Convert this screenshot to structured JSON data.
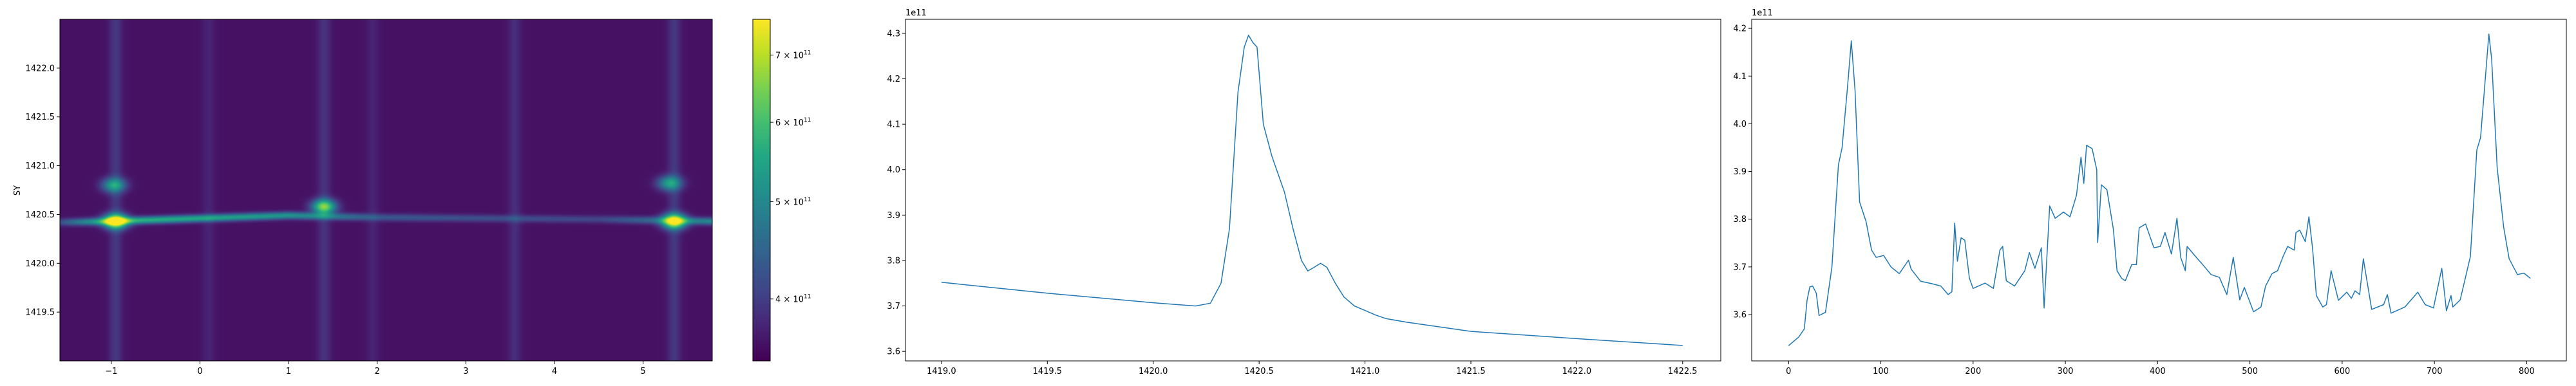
{
  "chart_data": [
    {
      "type": "heatmap",
      "xlabel": "",
      "ylabel": "SY",
      "xlim": [
        -1.58,
        5.78
      ],
      "ylim": [
        1419.0,
        1422.5
      ],
      "xticks": [
        -1,
        0,
        1,
        2,
        3,
        4,
        5
      ],
      "xtick_labels": [
        "−1",
        "0",
        "1",
        "2",
        "3",
        "4",
        "5"
      ],
      "yticks": [
        1419.5,
        1420.0,
        1420.5,
        1421.0,
        1421.5,
        1422.0
      ],
      "ytick_labels": [
        "1419.5",
        "1420.0",
        "1420.5",
        "1421.0",
        "1421.5",
        "1422.0"
      ],
      "colormap": "viridis",
      "color_scale": "log",
      "background_level": 360000000000.0,
      "bright_columns": [
        {
          "x": -0.95,
          "level": 395000000000.0
        },
        {
          "x": 0.1,
          "level": 375000000000.0
        },
        {
          "x": 1.4,
          "level": 390000000000.0
        },
        {
          "x": 1.95,
          "level": 375000000000.0
        },
        {
          "x": 3.55,
          "level": 385000000000.0
        },
        {
          "x": 5.35,
          "level": 395000000000.0
        }
      ],
      "ridge": [
        {
          "x": -1.58,
          "y": 1420.42,
          "level": 420000000000.0
        },
        {
          "x": -1.0,
          "y": 1420.43,
          "level": 580000000000.0
        },
        {
          "x": 1.0,
          "y": 1420.49,
          "level": 520000000000.0
        },
        {
          "x": 2.0,
          "y": 1420.47,
          "level": 430000000000.0
        },
        {
          "x": 4.5,
          "y": 1420.45,
          "level": 410000000000.0
        },
        {
          "x": 5.78,
          "y": 1420.43,
          "level": 500000000000.0
        }
      ],
      "hotspots": [
        {
          "x": -0.95,
          "y": 1420.43,
          "value": 750000000000.0
        },
        {
          "x": -0.97,
          "y": 1420.8,
          "value": 540000000000.0
        },
        {
          "x": 1.4,
          "y": 1420.58,
          "value": 640000000000.0
        },
        {
          "x": 5.35,
          "y": 1420.43,
          "value": 740000000000.0
        },
        {
          "x": 5.3,
          "y": 1420.82,
          "value": 540000000000.0
        }
      ],
      "colorbar": {
        "range": [
          347000000000.0,
          760000000000.0
        ],
        "ticks": [
          {
            "value": 700000000000.0,
            "base": "7 × 10",
            "exp": "11"
          },
          {
            "value": 600000000000.0,
            "base": "6 × 10",
            "exp": "11"
          },
          {
            "value": 500000000000.0,
            "base": "5 × 10",
            "exp": "11"
          },
          {
            "value": 400000000000.0,
            "base": "4 × 10",
            "exp": "11"
          }
        ]
      }
    },
    {
      "type": "line",
      "xlim": [
        1418.83,
        1422.68
      ],
      "ylim": [
        3.579,
        4.331
      ],
      "offset_label": "1e11",
      "xticks": [
        1419.0,
        1419.5,
        1420.0,
        1420.5,
        1421.0,
        1421.5,
        1422.0,
        1422.5
      ],
      "xtick_labels": [
        "1419.0",
        "1419.5",
        "1420.0",
        "1420.5",
        "1421.0",
        "1421.5",
        "1422.0",
        "1422.5"
      ],
      "yticks": [
        3.6,
        3.7,
        3.8,
        3.9,
        4.0,
        4.1,
        4.2,
        4.3
      ],
      "ytick_labels": [
        "3.6",
        "3.7",
        "3.8",
        "3.9",
        "4.0",
        "4.1",
        "4.2",
        "4.3"
      ],
      "color": "#1f77b4",
      "x": [
        1419.0,
        1419.5,
        1420.0,
        1420.2,
        1420.27,
        1420.32,
        1420.36,
        1420.4,
        1420.43,
        1420.45,
        1420.47,
        1420.49,
        1420.52,
        1420.56,
        1420.62,
        1420.66,
        1420.7,
        1420.73,
        1420.76,
        1420.79,
        1420.82,
        1420.86,
        1420.9,
        1420.95,
        1421.0,
        1421.05,
        1421.1,
        1421.2,
        1421.5,
        1422.0,
        1422.5
      ],
      "y": [
        3.752,
        3.728,
        3.707,
        3.7,
        3.706,
        3.75,
        3.87,
        4.17,
        4.27,
        4.296,
        4.28,
        4.27,
        4.1,
        4.03,
        3.95,
        3.87,
        3.8,
        3.777,
        3.785,
        3.794,
        3.785,
        3.75,
        3.72,
        3.7,
        3.69,
        3.68,
        3.672,
        3.664,
        3.644,
        3.628,
        3.613
      ]
    },
    {
      "type": "line",
      "xlim": [
        -40,
        843
      ],
      "ylim": [
        3.503,
        4.219
      ],
      "offset_label": "1e11",
      "xticks": [
        0,
        100,
        200,
        300,
        400,
        500,
        600,
        700,
        800
      ],
      "xtick_labels": [
        "0",
        "100",
        "200",
        "300",
        "400",
        "500",
        "600",
        "700",
        "800"
      ],
      "yticks": [
        3.6,
        3.7,
        3.8,
        3.9,
        4.0,
        4.1,
        4.2
      ],
      "ytick_labels": [
        "3.6",
        "3.7",
        "3.8",
        "3.9",
        "4.0",
        "4.1",
        "4.2"
      ],
      "color": "#1f77b4",
      "x": [
        0,
        6,
        11,
        17,
        20,
        23,
        26,
        30,
        33,
        40,
        47,
        54,
        58,
        64,
        68,
        72,
        77,
        84,
        90,
        95,
        103,
        111,
        120,
        130,
        133,
        143,
        155,
        165,
        173,
        177,
        180,
        183,
        187,
        191,
        196,
        200,
        213,
        222,
        229,
        232,
        236,
        245,
        256,
        261,
        267,
        274,
        277,
        283,
        289,
        298,
        305,
        312,
        317,
        320,
        323,
        329,
        334,
        335,
        339,
        345,
        352,
        356,
        361,
        365,
        372,
        377,
        380,
        387,
        396,
        403,
        408,
        415,
        421,
        425,
        430,
        432,
        441,
        447,
        458,
        467,
        475,
        482,
        489,
        494,
        504,
        512,
        517,
        524,
        530,
        536,
        541,
        548,
        550,
        554,
        560,
        564,
        568,
        572,
        579,
        583,
        588,
        596,
        605,
        610,
        614,
        619,
        623,
        632,
        645,
        649,
        653,
        668,
        682,
        690,
        699,
        708,
        713,
        718,
        720,
        728,
        735,
        739,
        746,
        750,
        753,
        759,
        762,
        768,
        775,
        781,
        790,
        797,
        804
      ],
      "y": [
        3.535,
        3.545,
        3.553,
        3.57,
        3.63,
        3.658,
        3.66,
        3.645,
        3.598,
        3.605,
        3.7,
        3.914,
        3.95,
        4.08,
        4.174,
        4.07,
        3.836,
        3.795,
        3.735,
        3.72,
        3.724,
        3.7,
        3.686,
        3.714,
        3.695,
        3.67,
        3.665,
        3.66,
        3.642,
        3.648,
        3.792,
        3.712,
        3.761,
        3.756,
        3.676,
        3.655,
        3.666,
        3.655,
        3.735,
        3.743,
        3.671,
        3.66,
        3.692,
        3.73,
        3.697,
        3.74,
        3.614,
        3.828,
        3.802,
        3.815,
        3.805,
        3.85,
        3.93,
        3.875,
        3.955,
        3.948,
        3.904,
        3.751,
        3.872,
        3.862,
        3.779,
        3.692,
        3.676,
        3.671,
        3.705,
        3.705,
        3.782,
        3.79,
        3.74,
        3.743,
        3.772,
        3.727,
        3.802,
        3.72,
        3.692,
        3.743,
        3.722,
        3.709,
        3.684,
        3.678,
        3.642,
        3.72,
        3.631,
        3.657,
        3.606,
        3.616,
        3.66,
        3.686,
        3.692,
        3.722,
        3.743,
        3.735,
        3.772,
        3.777,
        3.753,
        3.805,
        3.738,
        3.64,
        3.616,
        3.621,
        3.692,
        3.63,
        3.647,
        3.634,
        3.65,
        3.642,
        3.717,
        3.611,
        3.621,
        3.642,
        3.603,
        3.616,
        3.647,
        3.621,
        3.614,
        3.697,
        3.608,
        3.64,
        3.616,
        3.631,
        3.689,
        3.722,
        3.945,
        3.971,
        4.043,
        4.188,
        4.136,
        3.908,
        3.784,
        3.717,
        3.684,
        3.687,
        3.676
      ]
    }
  ]
}
